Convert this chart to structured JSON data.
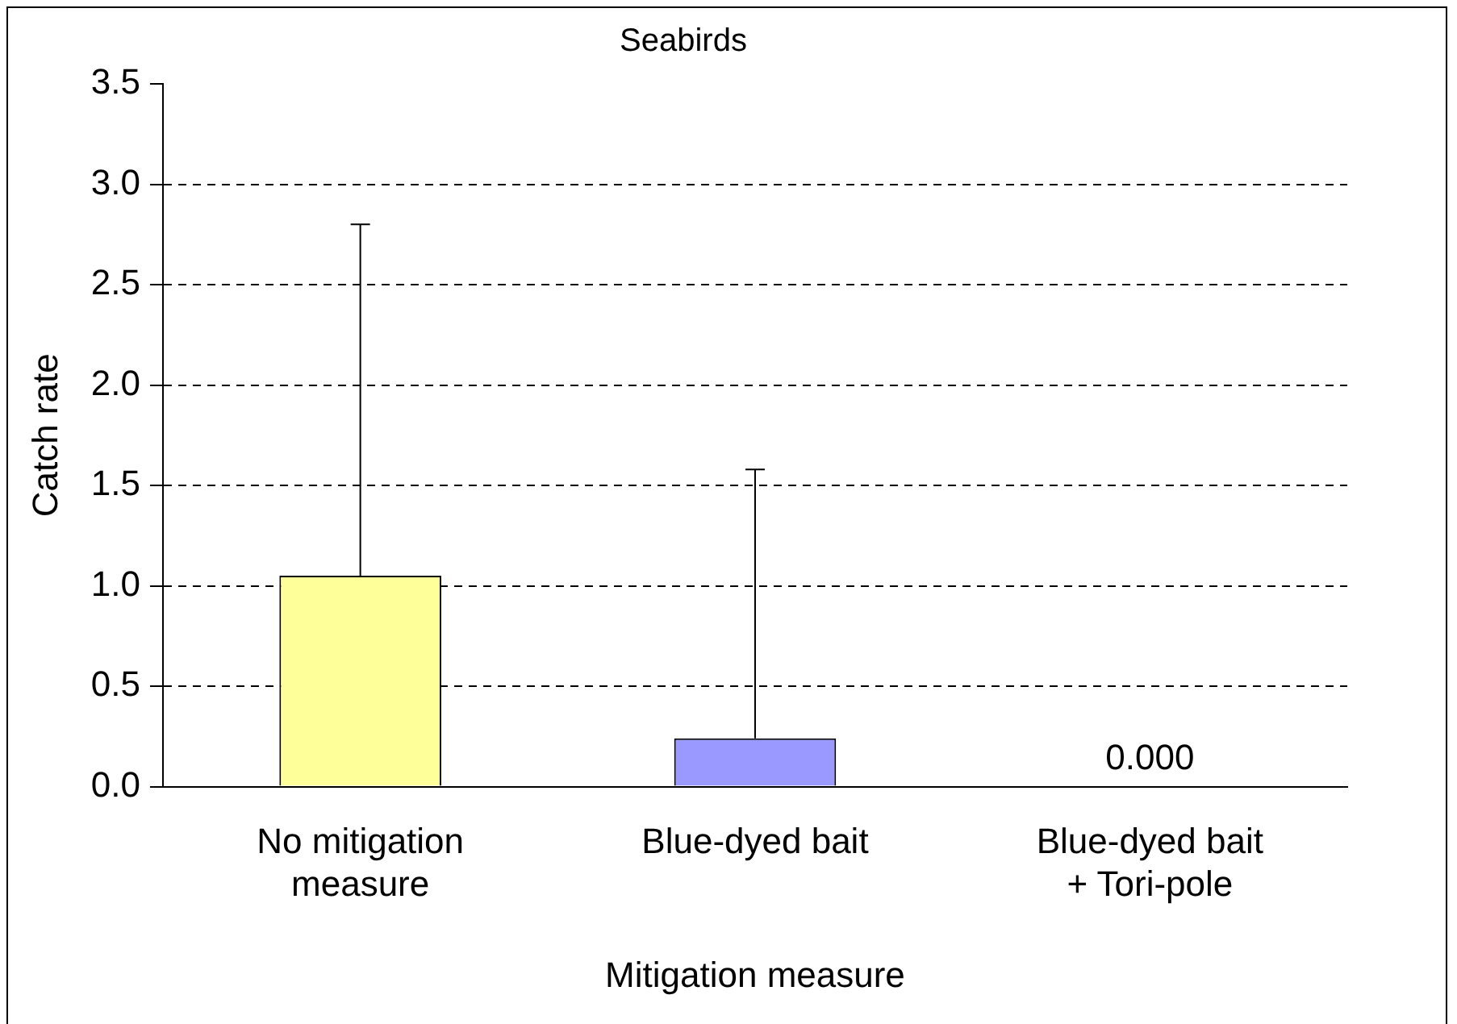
{
  "chart_data": {
    "type": "bar",
    "title": "Seabirds",
    "xlabel": "Mitigation measure",
    "ylabel": "Catch rate",
    "categories": [
      "No mitigation measure",
      "Blue-dyed bait",
      "Blue-dyed bait + Tori-pole"
    ],
    "values": [
      1.05,
      0.24,
      0
    ],
    "colors": [
      "#ffff99",
      "#9999ff",
      "#cccccc"
    ],
    "errors": [
      [
        1.05,
        2.8
      ],
      [
        0.24,
        1.58
      ],
      null
    ],
    "value_labels": [
      null,
      null,
      "0.000"
    ],
    "ylim": [
      0,
      3.5
    ],
    "yticks": [
      {
        "value": 0,
        "label": "0.0"
      },
      {
        "value": 0.5,
        "label": "0.5"
      },
      {
        "value": 1,
        "label": "1.0"
      },
      {
        "value": 1.5,
        "label": "1.5"
      },
      {
        "value": 2,
        "label": "2.0"
      },
      {
        "value": 2.5,
        "label": "2.5"
      },
      {
        "value": 3,
        "label": "3.0"
      },
      {
        "value": 3.5,
        "label": "3.5"
      }
    ],
    "grid": "y",
    "legend": false
  }
}
